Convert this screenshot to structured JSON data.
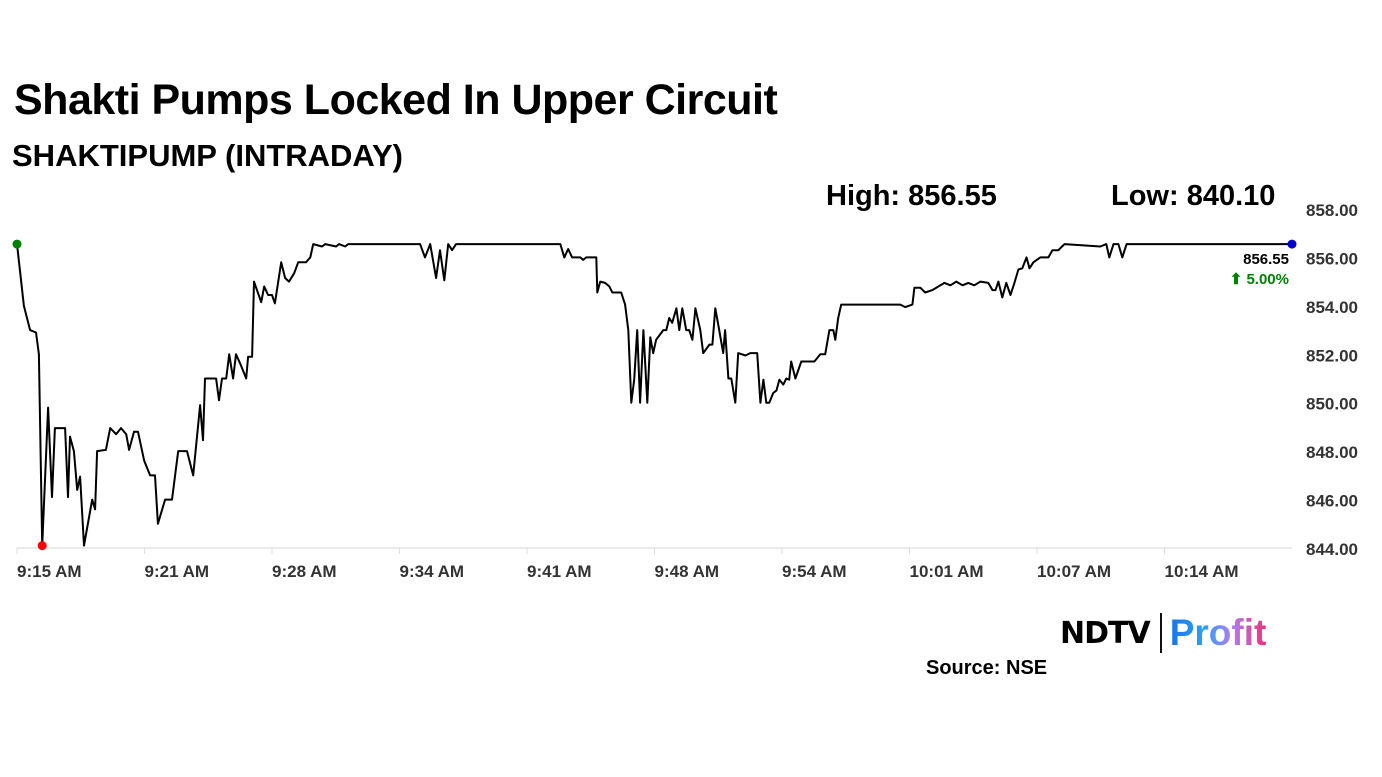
{
  "header": {
    "title": "Shakti Pumps Locked In Upper Circuit",
    "subtitle": "SHAKTIPUMP (INTRADAY)",
    "high": "High: 856.55",
    "low": "Low: 840.10"
  },
  "footer": {
    "logo_left": "NDTV",
    "logo_right": "Profit",
    "source": "Source: NSE"
  },
  "chart_data": {
    "type": "line",
    "title": "",
    "xlabel": "",
    "ylabel": "",
    "xlim": [
      "9:15:00",
      "10:20:00"
    ],
    "ylim": [
      844,
      858
    ],
    "yticks": [
      "844.00",
      "846.00",
      "848.00",
      "850.00",
      "852.00",
      "854.00",
      "856.00",
      "858.00"
    ],
    "xticks": [
      "9:15 AM",
      "9:21 AM",
      "9:28 AM",
      "9:34 AM",
      "9:41 AM",
      "9:48 AM",
      "9:54 AM",
      "10:01 AM",
      "10:07 AM",
      "10:14 AM"
    ],
    "grid": false,
    "line_color": "#000000",
    "last_label": {
      "value": "856.55",
      "change": "5.00%",
      "change_icon": "arrow-up-icon",
      "color": "#008000"
    },
    "markers": [
      {
        "name": "open",
        "time": "9:15:00",
        "price": 856.55,
        "color": "#008000"
      },
      {
        "name": "low",
        "time": "9:16:17",
        "price": 844.1,
        "color": "#ff0000"
      },
      {
        "name": "last",
        "time": "10:20:00",
        "price": 856.55,
        "color": "#0000cc"
      }
    ],
    "series": [
      {
        "points": [
          [
            "9:15:00",
            856.55
          ],
          [
            "9:15:21",
            854.0
          ],
          [
            "9:15:40",
            853.0
          ],
          [
            "9:15:58",
            852.9
          ],
          [
            "9:16:07",
            852.0
          ],
          [
            "9:16:17",
            844.1
          ],
          [
            "9:16:35",
            849.8
          ],
          [
            "9:16:47",
            846.1
          ],
          [
            "9:16:56",
            848.95
          ],
          [
            "9:17:27",
            848.95
          ],
          [
            "9:17:36",
            846.1
          ],
          [
            "9:17:42",
            848.6
          ],
          [
            "9:17:54",
            848.0
          ],
          [
            "9:18:04",
            846.4
          ],
          [
            "9:18:13",
            846.95
          ],
          [
            "9:18:25",
            844.1
          ],
          [
            "9:18:50",
            846.0
          ],
          [
            "9:18:59",
            845.6
          ],
          [
            "9:19:05",
            848.0
          ],
          [
            "9:19:32",
            848.05
          ],
          [
            "9:19:45",
            848.95
          ],
          [
            "9:20:03",
            848.7
          ],
          [
            "9:20:18",
            848.95
          ],
          [
            "9:20:34",
            848.7
          ],
          [
            "9:20:43",
            848.05
          ],
          [
            "9:20:58",
            848.8
          ],
          [
            "9:21:10",
            848.8
          ],
          [
            "9:21:29",
            847.6
          ],
          [
            "9:21:47",
            847.0
          ],
          [
            "9:22:02",
            847.0
          ],
          [
            "9:22:11",
            845.0
          ],
          [
            "9:22:33",
            846.0
          ],
          [
            "9:22:54",
            846.0
          ],
          [
            "9:23:13",
            848.0
          ],
          [
            "9:23:40",
            848.0
          ],
          [
            "9:23:59",
            847.0
          ],
          [
            "9:24:20",
            849.9
          ],
          [
            "9:24:29",
            848.45
          ],
          [
            "9:24:35",
            851.0
          ],
          [
            "9:25:09",
            851.0
          ],
          [
            "9:25:18",
            850.1
          ],
          [
            "9:25:27",
            851.0
          ],
          [
            "9:25:40",
            851.0
          ],
          [
            "9:25:49",
            852.0
          ],
          [
            "9:26:01",
            851.0
          ],
          [
            "9:26:10",
            852.0
          ],
          [
            "9:26:25",
            851.55
          ],
          [
            "9:26:41",
            851.0
          ],
          [
            "9:26:47",
            851.9
          ],
          [
            "9:26:59",
            851.9
          ],
          [
            "9:27:05",
            855.0
          ],
          [
            "9:27:27",
            854.15
          ],
          [
            "9:27:36",
            854.8
          ],
          [
            "9:27:48",
            854.45
          ],
          [
            "9:28:00",
            854.45
          ],
          [
            "9:28:09",
            854.1
          ],
          [
            "9:28:28",
            855.8
          ],
          [
            "9:28:40",
            855.15
          ],
          [
            "9:28:52",
            855.0
          ],
          [
            "9:29:08",
            855.35
          ],
          [
            "9:29:20",
            855.8
          ],
          [
            "9:29:44",
            855.8
          ],
          [
            "9:29:57",
            856.0
          ],
          [
            "9:30:06",
            856.55
          ],
          [
            "9:30:33",
            856.45
          ],
          [
            "9:30:43",
            856.55
          ],
          [
            "9:31:16",
            856.45
          ],
          [
            "9:31:25",
            856.55
          ],
          [
            "9:31:44",
            856.45
          ],
          [
            "9:31:53",
            856.55
          ],
          [
            "9:35:33",
            856.55
          ],
          [
            "9:35:48",
            856.0
          ],
          [
            "9:36:04",
            856.55
          ],
          [
            "9:36:22",
            855.15
          ],
          [
            "9:36:34",
            856.3
          ],
          [
            "9:36:47",
            855.05
          ],
          [
            "9:36:59",
            856.55
          ],
          [
            "9:37:11",
            856.3
          ],
          [
            "9:37:23",
            856.55
          ],
          [
            "9:42:42",
            856.55
          ],
          [
            "9:42:54",
            856.0
          ],
          [
            "9:43:06",
            856.35
          ],
          [
            "9:43:18",
            856.0
          ],
          [
            "9:43:43",
            856.0
          ],
          [
            "9:43:52",
            855.9
          ],
          [
            "9:44:01",
            856.0
          ],
          [
            "9:44:32",
            856.0
          ],
          [
            "9:44:35",
            854.55
          ],
          [
            "9:44:44",
            855.0
          ],
          [
            "9:44:59",
            854.95
          ],
          [
            "9:45:12",
            854.8
          ],
          [
            "9:45:21",
            854.55
          ],
          [
            "9:45:48",
            854.55
          ],
          [
            "9:46:00",
            854.05
          ],
          [
            "9:46:10",
            853.0
          ],
          [
            "9:46:19",
            850.0
          ],
          [
            "9:46:28",
            850.95
          ],
          [
            "9:46:37",
            853.0
          ],
          [
            "9:46:46",
            850.0
          ],
          [
            "9:46:56",
            853.0
          ],
          [
            "9:47:08",
            850.0
          ],
          [
            "9:47:17",
            852.7
          ],
          [
            "9:47:26",
            852.05
          ],
          [
            "9:47:35",
            852.6
          ],
          [
            "9:47:57",
            853.0
          ],
          [
            "9:48:06",
            853.0
          ],
          [
            "9:48:15",
            853.5
          ],
          [
            "9:48:24",
            853.3
          ],
          [
            "9:48:37",
            853.9
          ],
          [
            "9:48:46",
            853.0
          ],
          [
            "9:48:55",
            853.9
          ],
          [
            "9:49:07",
            853.0
          ],
          [
            "9:49:16",
            853.0
          ],
          [
            "9:49:26",
            852.6
          ],
          [
            "9:49:35",
            853.9
          ],
          [
            "9:49:50",
            853.0
          ],
          [
            "9:49:59",
            852.05
          ],
          [
            "9:50:18",
            852.4
          ],
          [
            "9:50:27",
            852.4
          ],
          [
            "9:50:36",
            853.9
          ],
          [
            "9:50:48",
            853.0
          ],
          [
            "9:51:00",
            852.05
          ],
          [
            "9:51:06",
            853.0
          ],
          [
            "9:51:16",
            851.0
          ],
          [
            "9:51:25",
            851.0
          ],
          [
            "9:51:37",
            850.0
          ],
          [
            "9:51:46",
            852.05
          ],
          [
            "9:52:08",
            851.95
          ],
          [
            "9:52:23",
            852.05
          ],
          [
            "9:52:44",
            852.05
          ],
          [
            "9:52:54",
            850.0
          ],
          [
            "9:53:03",
            850.95
          ],
          [
            "9:53:12",
            850.0
          ],
          [
            "9:53:21",
            850.0
          ],
          [
            "9:53:33",
            850.4
          ],
          [
            "9:53:43",
            850.5
          ],
          [
            "9:53:52",
            850.95
          ],
          [
            "9:54:04",
            850.75
          ],
          [
            "9:54:13",
            851.0
          ],
          [
            "9:54:22",
            850.95
          ],
          [
            "9:54:28",
            851.7
          ],
          [
            "9:54:41",
            851.0
          ],
          [
            "9:54:59",
            851.7
          ],
          [
            "9:55:39",
            851.7
          ],
          [
            "9:55:57",
            852.0
          ],
          [
            "9:56:12",
            852.0
          ],
          [
            "9:56:25",
            853.0
          ],
          [
            "9:56:37",
            853.0
          ],
          [
            "9:56:43",
            852.6
          ],
          [
            "9:56:52",
            853.5
          ],
          [
            "9:57:01",
            854.05
          ],
          [
            "10:00:02",
            854.05
          ],
          [
            "10:00:17",
            853.95
          ],
          [
            "10:00:39",
            854.05
          ],
          [
            "10:00:45",
            854.75
          ],
          [
            "10:01:03",
            854.75
          ],
          [
            "10:01:18",
            854.55
          ],
          [
            "10:01:40",
            854.65
          ],
          [
            "10:01:58",
            854.8
          ],
          [
            "10:02:17",
            854.95
          ],
          [
            "10:02:35",
            854.85
          ],
          [
            "10:02:53",
            855.0
          ],
          [
            "10:03:12",
            854.85
          ],
          [
            "10:03:30",
            854.95
          ],
          [
            "10:03:48",
            854.85
          ],
          [
            "10:04:07",
            855.0
          ],
          [
            "10:04:31",
            854.95
          ],
          [
            "10:04:44",
            854.65
          ],
          [
            "10:04:53",
            854.65
          ],
          [
            "10:05:02",
            855.0
          ],
          [
            "10:05:14",
            854.35
          ],
          [
            "10:05:26",
            854.95
          ],
          [
            "10:05:39",
            854.45
          ],
          [
            "10:05:51",
            854.95
          ],
          [
            "10:06:03",
            855.5
          ],
          [
            "10:06:15",
            855.55
          ],
          [
            "10:06:28",
            856.0
          ],
          [
            "10:06:37",
            855.55
          ],
          [
            "10:06:49",
            855.8
          ],
          [
            "10:07:10",
            856.0
          ],
          [
            "10:07:35",
            856.0
          ],
          [
            "10:07:47",
            856.3
          ],
          [
            "10:08:05",
            856.3
          ],
          [
            "10:08:24",
            856.55
          ],
          [
            "10:10:14",
            856.45
          ],
          [
            "10:10:32",
            856.55
          ],
          [
            "10:10:41",
            856.0
          ],
          [
            "10:10:54",
            856.55
          ],
          [
            "10:11:09",
            856.55
          ],
          [
            "10:11:21",
            856.0
          ],
          [
            "10:11:34",
            856.55
          ],
          [
            "10:20:00",
            856.55
          ]
        ]
      }
    ]
  }
}
